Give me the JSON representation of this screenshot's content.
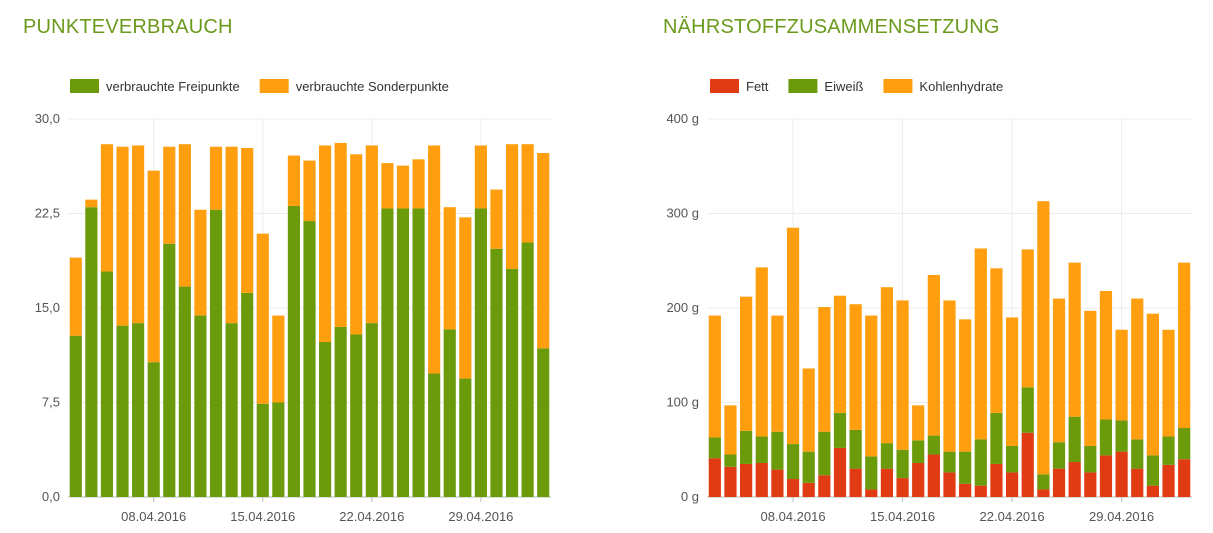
{
  "charts": {
    "left": {
      "title": "PUNKTEVERBRAUCH"
    },
    "right": {
      "title": "NÄHRSTOFFZUSAMMENSETZUNG"
    }
  },
  "chart_data": [
    {
      "type": "bar",
      "stacked": true,
      "title": "PUNKTEVERBRAUCH",
      "xlabel": "",
      "ylabel": "",
      "ylim": [
        0,
        30
      ],
      "yticks": [
        "0,0",
        "7,5",
        "15,0",
        "22,5",
        "30,0"
      ],
      "ytick_values": [
        0,
        7.5,
        15,
        22.5,
        30
      ],
      "xtick_labels": [
        {
          "label": "08.04.2016",
          "index": 5
        },
        {
          "label": "15.04.2016",
          "index": 12
        },
        {
          "label": "22.04.2016",
          "index": 19
        },
        {
          "label": "29.04.2016",
          "index": 26
        }
      ],
      "grid": true,
      "legend": "top-left",
      "colors": [
        "#6b9a0a",
        "#ff9e0f"
      ],
      "series": [
        {
          "name": "verbrauchte Freipunkte",
          "values": [
            12.8,
            23.0,
            17.9,
            13.6,
            13.8,
            10.7,
            20.1,
            16.7,
            14.4,
            22.8,
            13.8,
            16.2,
            7.4,
            7.5,
            23.1,
            21.9,
            12.3,
            13.5,
            12.9,
            13.8,
            22.9,
            22.9,
            22.9,
            9.8,
            13.3,
            9.4,
            22.9,
            19.7,
            18.1,
            20.2,
            11.8
          ]
        },
        {
          "name": "verbrauchte Sonderpunkte",
          "values": [
            6.2,
            0.6,
            10.1,
            14.2,
            14.1,
            15.2,
            7.7,
            11.3,
            8.4,
            5.0,
            14.0,
            11.5,
            13.5,
            6.9,
            4.0,
            4.8,
            15.6,
            14.6,
            14.3,
            14.1,
            3.6,
            3.4,
            3.9,
            18.1,
            9.7,
            12.8,
            5.0,
            4.7,
            9.9,
            7.8,
            15.5
          ]
        }
      ]
    },
    {
      "type": "bar",
      "stacked": true,
      "title": "NÄHRSTOFFZUSAMMENSETZUNG",
      "xlabel": "",
      "ylabel": "",
      "ylim": [
        0,
        400
      ],
      "yticks": [
        "0 g",
        "100 g",
        "200 g",
        "300 g",
        "400 g"
      ],
      "ytick_values": [
        0,
        100,
        200,
        300,
        400
      ],
      "xtick_labels": [
        {
          "label": "08.04.2016",
          "index": 5
        },
        {
          "label": "15.04.2016",
          "index": 12
        },
        {
          "label": "22.04.2016",
          "index": 19
        },
        {
          "label": "29.04.2016",
          "index": 26
        }
      ],
      "grid": true,
      "legend": "top-left",
      "colors": [
        "#e03b12",
        "#6b9a0a",
        "#ff9e0f"
      ],
      "series": [
        {
          "name": "Fett",
          "values": [
            41,
            32,
            35,
            36,
            29,
            19,
            15,
            23,
            52,
            30,
            8,
            30,
            20,
            36,
            45,
            26,
            14,
            12,
            35,
            26,
            68,
            8,
            30,
            37,
            26,
            44,
            48,
            30,
            12,
            34,
            40
          ]
        },
        {
          "name": "Eiweiß",
          "values": [
            22,
            13,
            35,
            28,
            40,
            37,
            33,
            46,
            37,
            41,
            35,
            27,
            30,
            24,
            20,
            22,
            34,
            49,
            54,
            28,
            48,
            16,
            28,
            48,
            28,
            38,
            33,
            31,
            32,
            30,
            33
          ]
        },
        {
          "name": "Kohlenhydrate",
          "values": [
            129,
            52,
            142,
            179,
            123,
            229,
            88,
            132,
            124,
            133,
            149,
            165,
            158,
            37,
            170,
            160,
            140,
            202,
            153,
            136,
            146,
            289,
            152,
            163,
            143,
            136,
            96,
            149,
            150,
            113,
            175
          ]
        }
      ]
    }
  ]
}
